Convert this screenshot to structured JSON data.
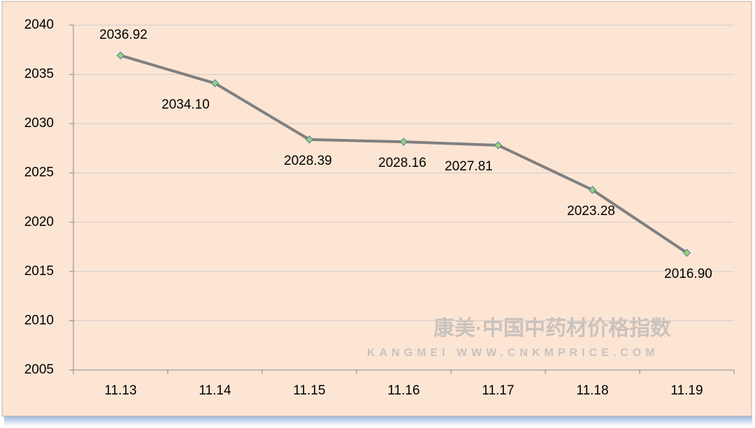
{
  "chart_data": {
    "type": "line",
    "categories": [
      "11.13",
      "11.14",
      "11.15",
      "11.16",
      "11.17",
      "11.18",
      "11.19"
    ],
    "series": [
      {
        "color": "#808080",
        "marker_color": "#9bd36b",
        "values": [
          2036.92,
          2034.1,
          2028.39,
          2028.16,
          2027.81,
          2023.28,
          2016.9
        ],
        "value_labels": [
          "2036.92",
          "2034.10",
          "2028.39",
          "2028.16",
          "2027.81",
          "2023.28",
          "2016.90"
        ]
      }
    ],
    "ylim": [
      2005,
      2040
    ],
    "yticks": [
      2005,
      2010,
      2015,
      2020,
      2025,
      2030,
      2035,
      2040
    ],
    "grid": true,
    "watermark": {
      "title": "康美·中国中药材价格指数",
      "subtitle": "KANGMEI WWW.CNKMPRICE.COM"
    }
  }
}
